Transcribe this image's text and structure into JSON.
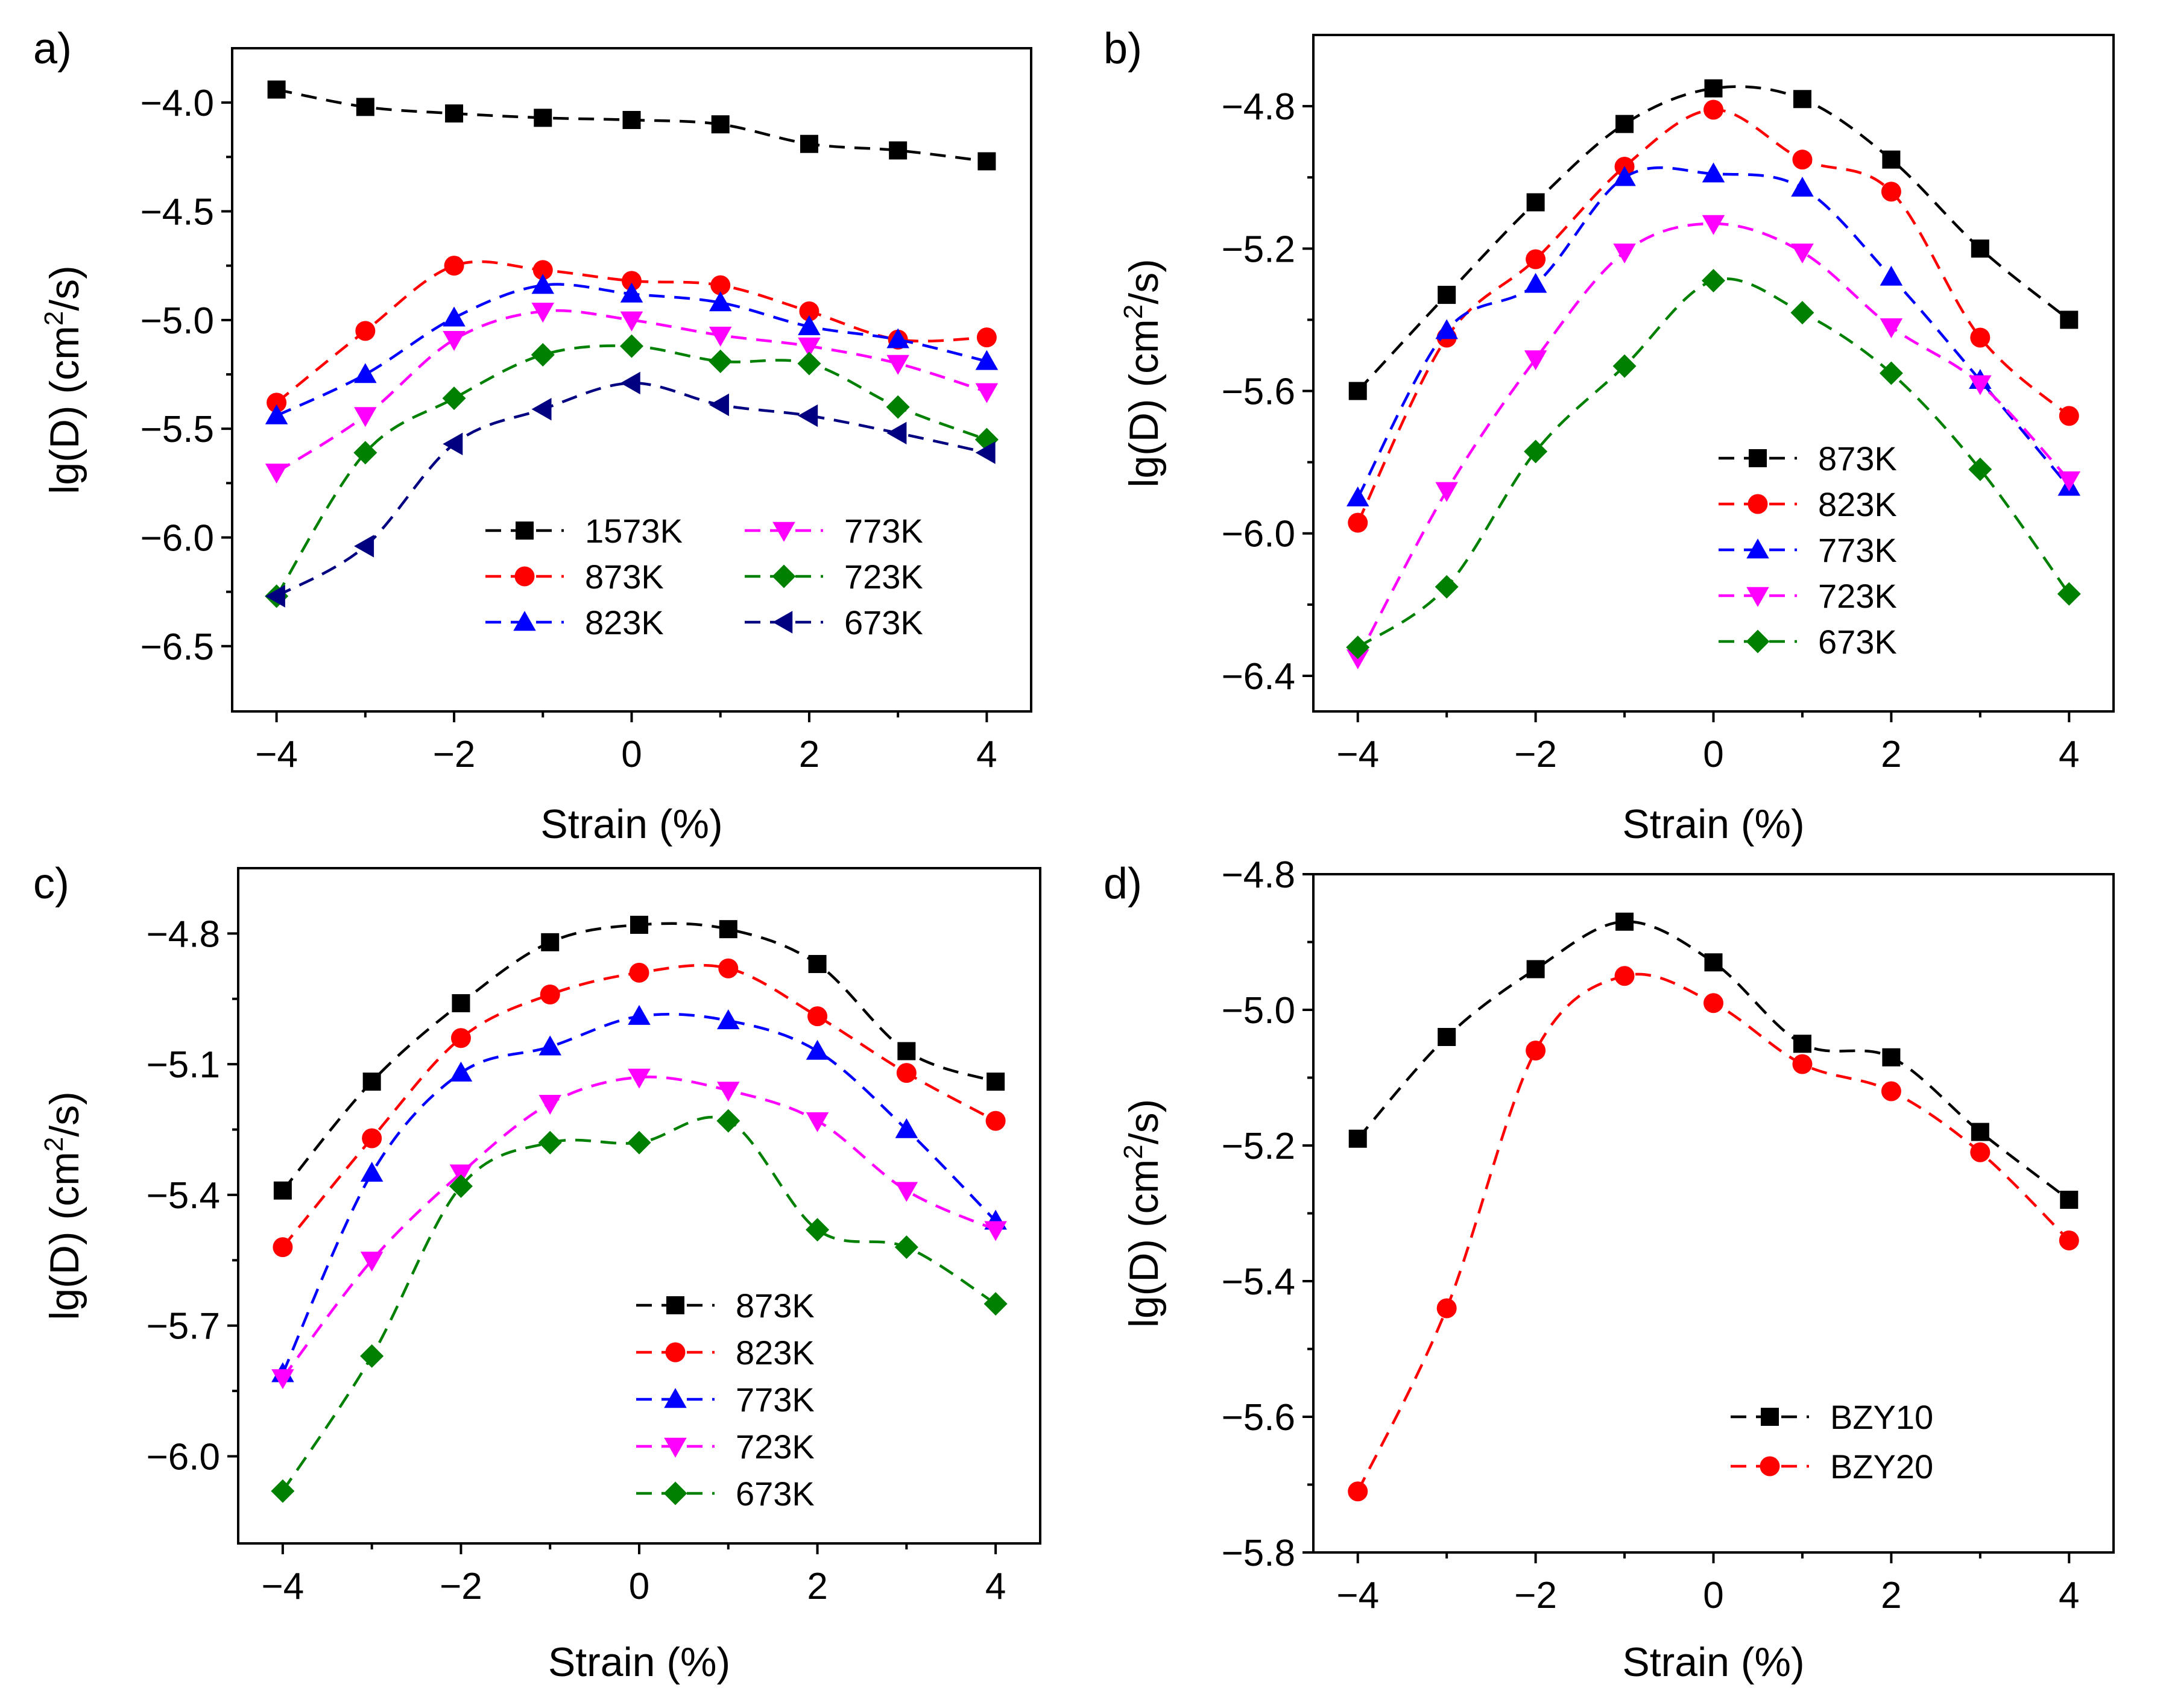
{
  "chart_data": [
    {
      "type": "line",
      "panel_label": "a)",
      "xlabel": "Strain (%)",
      "ylabel": "lg(D) (cm",
      "ylabel_sup": "2",
      "ylabel_end": "/s)",
      "xlim": [
        -4.5,
        4.5
      ],
      "ylim": [
        -6.8,
        -3.75
      ],
      "xticks": [
        -4,
        -2,
        0,
        2,
        4
      ],
      "xtick_labels": [
        "−4",
        "−2",
        "0",
        "2",
        "4"
      ],
      "yticks": [
        -4.0,
        -4.5,
        -5.0,
        -5.5,
        -6.0,
        -6.5
      ],
      "ytick_labels": [
        "−4.0",
        "−4.5",
        "−5.0",
        "−5.5",
        "−6.0",
        "−6.5"
      ],
      "legend_position": "bottom-right",
      "legend_columns": 2,
      "x": [
        -4,
        -3,
        -2,
        -1,
        0,
        1,
        2,
        3,
        4
      ],
      "series": [
        {
          "name": "1573K",
          "color": "#000000",
          "marker": "square",
          "values": [
            -3.94,
            -4.02,
            -4.05,
            -4.07,
            -4.08,
            -4.1,
            -4.19,
            -4.22,
            -4.27
          ]
        },
        {
          "name": "873K",
          "color": "#ff0000",
          "marker": "circle",
          "values": [
            -5.38,
            -5.05,
            -4.75,
            -4.77,
            -4.82,
            -4.84,
            -4.96,
            -5.09,
            -5.08
          ]
        },
        {
          "name": "823K",
          "color": "#0000ff",
          "marker": "triangle-up",
          "values": [
            -5.44,
            -5.25,
            -4.99,
            -4.84,
            -4.88,
            -4.92,
            -5.03,
            -5.09,
            -5.19
          ]
        },
        {
          "name": "773K",
          "color": "#ff00ff",
          "marker": "triangle-down",
          "values": [
            -5.7,
            -5.44,
            -5.09,
            -4.96,
            -5.0,
            -5.07,
            -5.12,
            -5.2,
            -5.33
          ]
        },
        {
          "name": "723K",
          "color": "#008000",
          "marker": "diamond",
          "values": [
            -6.27,
            -5.61,
            -5.36,
            -5.16,
            -5.12,
            -5.19,
            -5.2,
            -5.4,
            -5.55
          ]
        },
        {
          "name": "673K",
          "color": "#000080",
          "marker": "triangle-left",
          "values": [
            -6.27,
            -6.04,
            -5.57,
            -5.41,
            -5.29,
            -5.39,
            -5.44,
            -5.52,
            -5.61
          ]
        }
      ]
    },
    {
      "type": "line",
      "panel_label": "b)",
      "xlabel": "Strain (%)",
      "ylabel": "lg(D) (cm",
      "ylabel_sup": "2",
      "ylabel_end": "/s)",
      "xlim": [
        -4.5,
        4.5
      ],
      "ylim": [
        -6.5,
        -4.6
      ],
      "xticks": [
        -4,
        -2,
        0,
        2,
        4
      ],
      "xtick_labels": [
        "−4",
        "−2",
        "0",
        "2",
        "4"
      ],
      "yticks": [
        -4.8,
        -5.2,
        -5.6,
        -6.0,
        -6.4
      ],
      "ytick_labels": [
        "−4.8",
        "−5.2",
        "−5.6",
        "−6.0",
        "−6.4"
      ],
      "legend_position": "bottom-right",
      "legend_columns": 1,
      "x": [
        -4,
        -3,
        -2,
        -1,
        0,
        1,
        2,
        3,
        4
      ],
      "series": [
        {
          "name": "873K",
          "color": "#000000",
          "marker": "square",
          "values": [
            -5.6,
            -5.33,
            -5.07,
            -4.85,
            -4.75,
            -4.78,
            -4.95,
            -5.2,
            -5.4
          ]
        },
        {
          "name": "823K",
          "color": "#ff0000",
          "marker": "circle",
          "values": [
            -5.97,
            -5.45,
            -5.23,
            -4.97,
            -4.81,
            -4.95,
            -5.04,
            -5.45,
            -5.67
          ]
        },
        {
          "name": "773K",
          "color": "#0000ff",
          "marker": "triangle-up",
          "values": [
            -5.9,
            -5.43,
            -5.3,
            -5.0,
            -4.99,
            -5.03,
            -5.28,
            -5.57,
            -5.87
          ]
        },
        {
          "name": "723K",
          "color": "#ff00ff",
          "marker": "triangle-down",
          "values": [
            -6.35,
            -5.88,
            -5.51,
            -5.21,
            -5.13,
            -5.21,
            -5.42,
            -5.58,
            -5.85
          ]
        },
        {
          "name": "673K",
          "color": "#008000",
          "marker": "diamond",
          "values": [
            -6.32,
            -6.15,
            -5.77,
            -5.53,
            -5.29,
            -5.38,
            -5.55,
            -5.82,
            -6.17
          ]
        }
      ]
    },
    {
      "type": "line",
      "panel_label": "c)",
      "xlabel": "Strain (%)",
      "ylabel": "lg(D) (cm",
      "ylabel_sup": "2",
      "ylabel_end": "/s)",
      "xlim": [
        -4.5,
        4.5
      ],
      "ylim": [
        -6.2,
        -4.65
      ],
      "xticks": [
        -4,
        -2,
        0,
        2,
        4
      ],
      "xtick_labels": [
        "−4",
        "−2",
        "0",
        "2",
        "4"
      ],
      "yticks": [
        -4.8,
        -5.1,
        -5.4,
        -5.7,
        -6.0
      ],
      "ytick_labels": [
        "−4.8",
        "−5.1",
        "−5.4",
        "−5.7",
        "−6.0"
      ],
      "legend_position": "bottom-right",
      "legend_columns": 1,
      "x": [
        -4,
        -3,
        -2,
        -1,
        0,
        1,
        2,
        3,
        4
      ],
      "series": [
        {
          "name": "873K",
          "color": "#000000",
          "marker": "square",
          "values": [
            -5.39,
            -5.14,
            -4.96,
            -4.82,
            -4.78,
            -4.79,
            -4.87,
            -5.07,
            -5.14
          ]
        },
        {
          "name": "823K",
          "color": "#ff0000",
          "marker": "circle",
          "values": [
            -5.52,
            -5.27,
            -5.04,
            -4.94,
            -4.89,
            -4.88,
            -4.99,
            -5.12,
            -5.23
          ]
        },
        {
          "name": "773K",
          "color": "#0000ff",
          "marker": "triangle-up",
          "values": [
            -5.81,
            -5.35,
            -5.12,
            -5.06,
            -4.99,
            -5.0,
            -5.07,
            -5.25,
            -5.46
          ]
        },
        {
          "name": "723K",
          "color": "#ff00ff",
          "marker": "triangle-down",
          "values": [
            -5.82,
            -5.55,
            -5.35,
            -5.19,
            -5.13,
            -5.16,
            -5.23,
            -5.39,
            -5.48
          ]
        },
        {
          "name": "673K",
          "color": "#008000",
          "marker": "diamond",
          "values": [
            -6.08,
            -5.77,
            -5.38,
            -5.28,
            -5.28,
            -5.23,
            -5.48,
            -5.52,
            -5.65
          ]
        }
      ]
    },
    {
      "type": "line",
      "panel_label": "d)",
      "xlabel": "Strain (%)",
      "ylabel": "lg(D) (cm",
      "ylabel_sup": "2",
      "ylabel_end": "/s)",
      "xlim": [
        -4.5,
        4.5
      ],
      "ylim": [
        -5.8,
        -4.8
      ],
      "xticks": [
        -4,
        -2,
        0,
        2,
        4
      ],
      "xtick_labels": [
        "−4",
        "−2",
        "0",
        "2",
        "4"
      ],
      "yticks": [
        -4.8,
        -5.0,
        -5.2,
        -5.4,
        -5.6,
        -5.8
      ],
      "ytick_labels": [
        "−4.8",
        "−5.0",
        "−5.2",
        "−5.4",
        "−5.6",
        "−5.8"
      ],
      "legend_position": "bottom-right",
      "legend_columns": 1,
      "x": [
        -4,
        -3,
        -2,
        -1,
        0,
        1,
        2,
        3,
        4
      ],
      "series": [
        {
          "name": "BZY10",
          "color": "#000000",
          "marker": "square",
          "values": [
            -5.19,
            -5.04,
            -4.94,
            -4.87,
            -4.93,
            -5.05,
            -5.07,
            -5.18,
            -5.28
          ]
        },
        {
          "name": "BZY20",
          "color": "#ff0000",
          "marker": "circle",
          "values": [
            -5.71,
            -5.44,
            -5.06,
            -4.95,
            -4.99,
            -5.08,
            -5.12,
            -5.21,
            -5.34
          ]
        }
      ]
    }
  ]
}
